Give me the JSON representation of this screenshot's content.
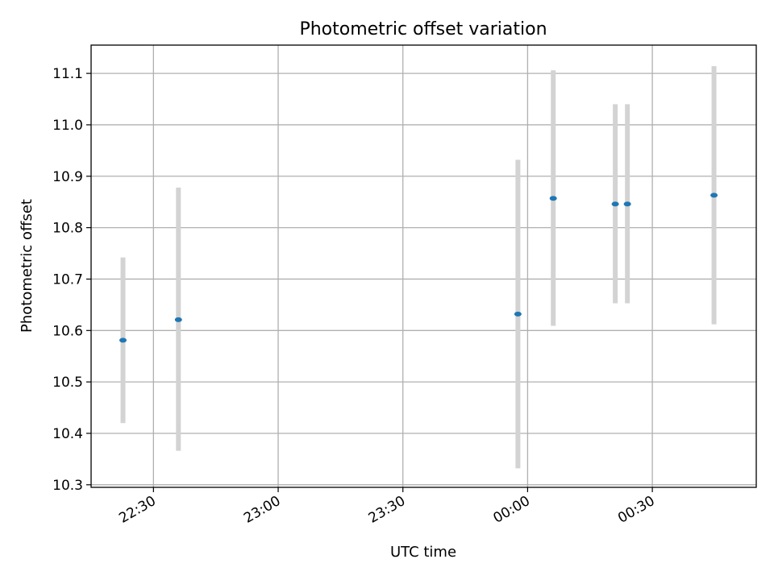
{
  "chart_data": {
    "type": "scatter",
    "title": "Photometric offset variation",
    "xlabel": "UTC time",
    "ylabel": "Photometric offset",
    "x_axis_kind": "time",
    "xlim": [
      "22:15",
      "00:55"
    ],
    "ylim": [
      10.295,
      11.155
    ],
    "xticks": [
      "22:30",
      "23:00",
      "23:30",
      "00:00",
      "00:30"
    ],
    "yticks": [
      10.3,
      10.4,
      10.5,
      10.6,
      10.7,
      10.8,
      10.9,
      11.0,
      11.1
    ],
    "grid": true,
    "series": [
      {
        "color": "#1f77b4",
        "error_color": "#d3d3d3",
        "points": [
          {
            "x": "22:22:40",
            "y": 10.581,
            "ylow": 10.42,
            "yhigh": 10.742
          },
          {
            "x": "22:36:00",
            "y": 10.621,
            "ylow": 10.366,
            "yhigh": 10.878
          },
          {
            "x": "23:57:40",
            "y": 10.632,
            "ylow": 10.332,
            "yhigh": 10.932
          },
          {
            "x": "00:06:10",
            "y": 10.857,
            "ylow": 10.609,
            "yhigh": 11.106
          },
          {
            "x": "00:21:05",
            "y": 10.846,
            "ylow": 10.653,
            "yhigh": 11.04
          },
          {
            "x": "00:24:00",
            "y": 10.846,
            "ylow": 10.653,
            "yhigh": 11.04
          },
          {
            "x": "00:44:50",
            "y": 10.863,
            "ylow": 10.612,
            "yhigh": 11.114
          }
        ]
      }
    ]
  }
}
